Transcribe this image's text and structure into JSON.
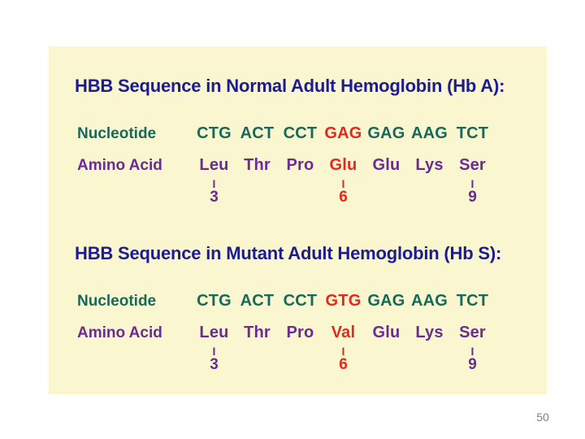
{
  "colors": {
    "canvas_bg": "#ffffff",
    "slide_bg": "#faf7d0",
    "title": "#1c1c8f",
    "nucleotide": "#17695a",
    "amino_acid": "#6b2b91",
    "highlight": "#e3291d",
    "page_number": "#7f7f7f"
  },
  "glyphs": {
    "position_bar": "I"
  },
  "slide": {
    "page_number": "50",
    "sections": [
      {
        "title": "HBB Sequence in Normal Adult Hemoglobin (Hb A):",
        "nucleotide_label": "Nucleotide",
        "amino_acid_label": "Amino Acid",
        "codons": [
          "CTG",
          "ACT",
          "CCT",
          "GAG",
          "GAG",
          "AAG",
          "TCT"
        ],
        "amino_acids": [
          "Leu",
          "Thr",
          "Pro",
          "Glu",
          "Glu",
          "Lys",
          "Ser"
        ],
        "highlight_column": 4,
        "position_markers": [
          {
            "column": 1,
            "number": "3",
            "highlighted": false
          },
          {
            "column": 4,
            "number": "6",
            "highlighted": true
          },
          {
            "column": 7,
            "number": "9",
            "highlighted": false
          }
        ]
      },
      {
        "title": "HBB Sequence in Mutant Adult Hemoglobin (Hb S):",
        "nucleotide_label": "Nucleotide",
        "amino_acid_label": "Amino Acid",
        "codons": [
          "CTG",
          "ACT",
          "CCT",
          "GTG",
          "GAG",
          "AAG",
          "TCT"
        ],
        "amino_acids": [
          "Leu",
          "Thr",
          "Pro",
          "Val",
          "Glu",
          "Lys",
          "Ser"
        ],
        "highlight_column": 4,
        "position_markers": [
          {
            "column": 1,
            "number": "3",
            "highlighted": false
          },
          {
            "column": 4,
            "number": "6",
            "highlighted": true
          },
          {
            "column": 7,
            "number": "9",
            "highlighted": false
          }
        ]
      }
    ]
  }
}
